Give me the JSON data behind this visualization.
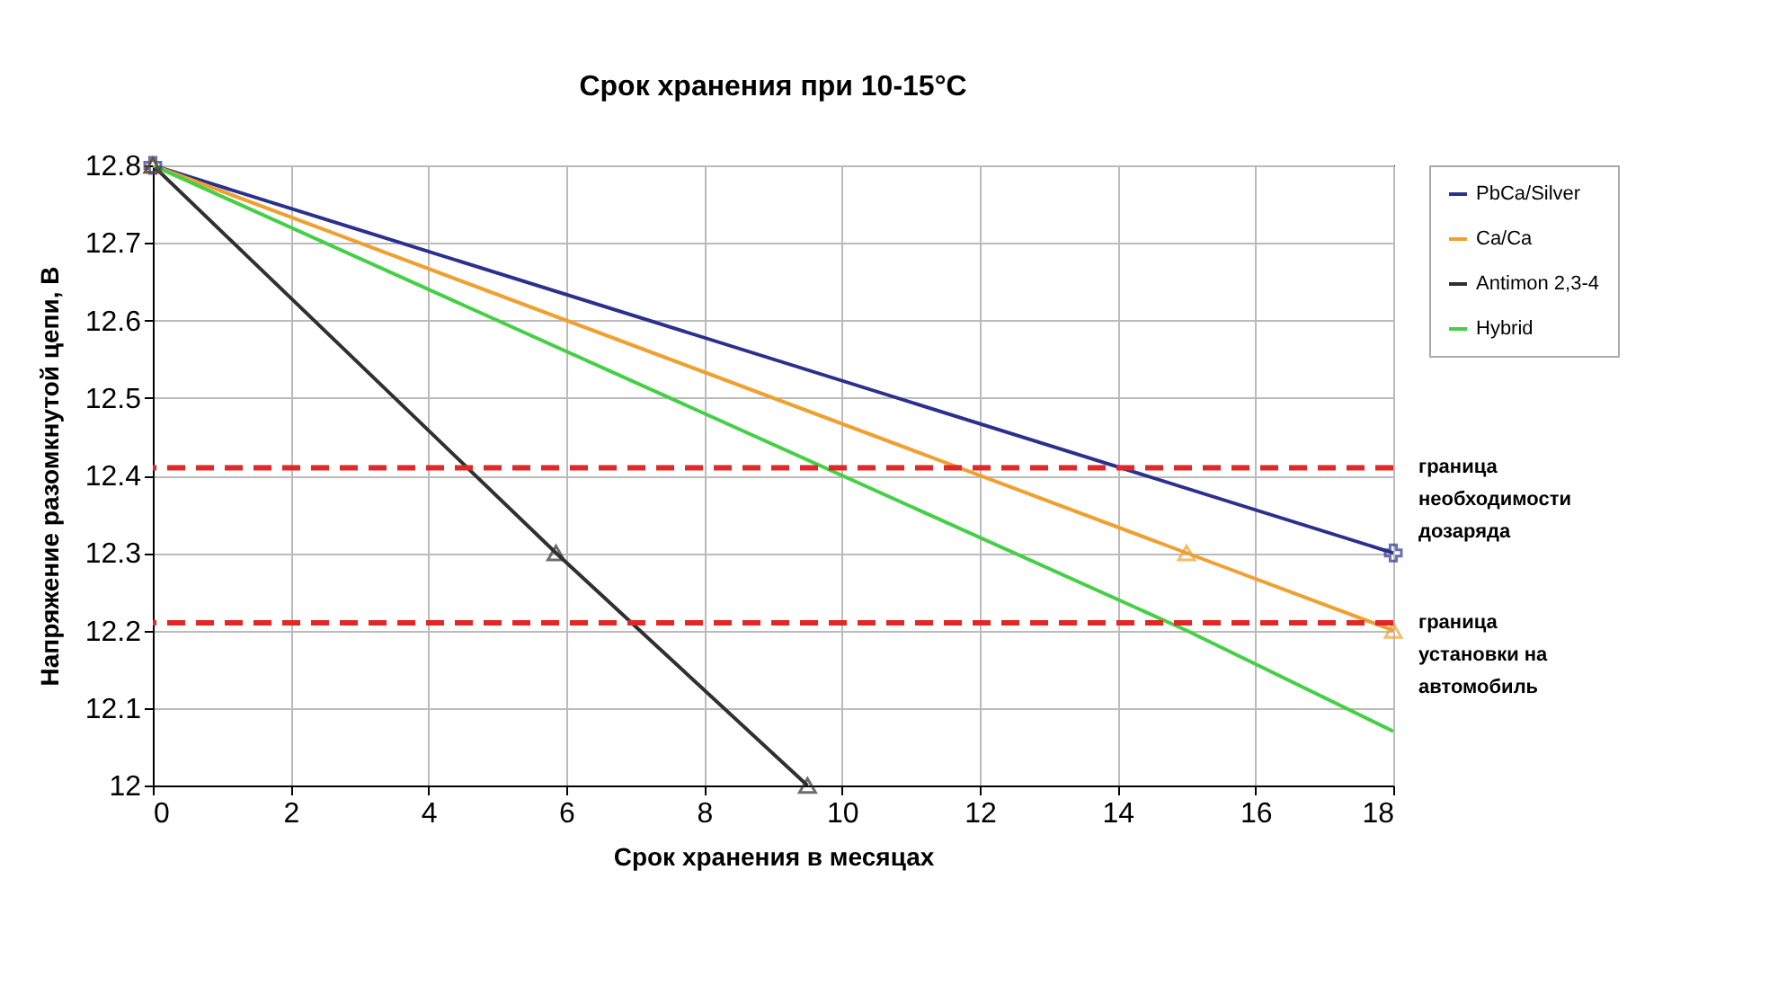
{
  "chart_data": {
    "type": "line",
    "title": "Срок хранения при 10-15°C",
    "xlabel": "Срок хранения в месяцах",
    "ylabel": "Напряжение разомкнутой цепи, В",
    "xlim": [
      0,
      18
    ],
    "xticks": [
      0,
      2,
      4,
      6,
      8,
      10,
      12,
      14,
      16,
      18
    ],
    "ylim": [
      12,
      12.8
    ],
    "yticks": [
      12,
      12.1,
      12.2,
      12.3,
      12.4,
      12.5,
      12.6,
      12.7,
      12.8
    ],
    "grid": true,
    "legend": "top right",
    "series": [
      {
        "name": "PbCa/Silver",
        "color": "#2a318c",
        "marker": "cross",
        "x": [
          0,
          18
        ],
        "values": [
          12.8,
          12.3
        ]
      },
      {
        "name": "Ca/Ca",
        "color": "#f0a030",
        "marker": "triangle",
        "x": [
          0,
          15,
          18
        ],
        "values": [
          12.8,
          12.3,
          12.2
        ]
      },
      {
        "name": "Antimon 2,3-4",
        "color": "#303030",
        "marker": "triangle",
        "x": [
          0,
          5.85,
          9.5
        ],
        "values": [
          12.8,
          12.3,
          12.0
        ]
      },
      {
        "name": "Hybrid",
        "color": "#44d044",
        "marker": "none",
        "x": [
          0,
          15,
          18
        ],
        "values": [
          12.8,
          12.2,
          12.07
        ]
      }
    ],
    "ref_lines": [
      {
        "axis": "y",
        "value": 12.41,
        "label": "граница\nнеобходимости\nдозаряда",
        "color": "#e02828",
        "line_style": "dashed"
      },
      {
        "axis": "y",
        "value": 12.21,
        "label": "граница\nустановки на\nавтомобиль",
        "color": "#e02828",
        "line_style": "dashed"
      }
    ]
  }
}
